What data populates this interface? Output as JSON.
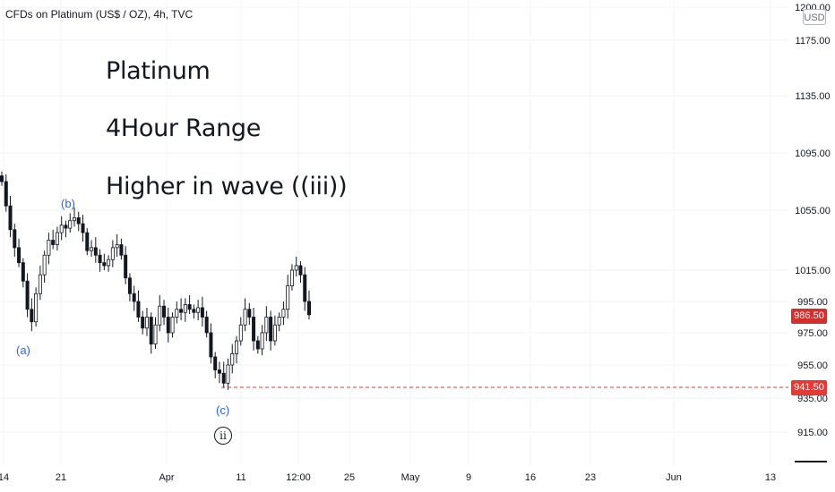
{
  "header": {
    "symbol_line": "CFDs on Platinum (US$ / OZ), 4h, TVC"
  },
  "annotations": {
    "line1": "Platinum",
    "line2": "4Hour Range",
    "line3": "Higher in wave ((iii))"
  },
  "wave_labels": {
    "a": "(a)",
    "b": "(b)",
    "c": "(c)",
    "ii": "ii"
  },
  "price_axis": {
    "currency_badge": "USD",
    "last_price_label": "986.50",
    "level_label": "941.50"
  },
  "colors": {
    "candle": "#131722",
    "level_line": "#e53935",
    "last_price_bg": "#d32f2f",
    "wave_label": "#2962ff",
    "grid": "#f0f3fa"
  },
  "chart_data": {
    "type": "candlestick",
    "title": "CFDs on Platinum (US$ / OZ), 4h, TVC",
    "xlabel": "",
    "ylabel": "",
    "ylim": [
      893,
      1215
    ],
    "grid": true,
    "y_ticks": [
      "915.00",
      "935.00",
      "955.00",
      "975.00",
      "995.00",
      "1015.00",
      "1055.00",
      "1095.00",
      "1135.00",
      "1175.00",
      "1200.00"
    ],
    "y_tick_values": [
      915,
      935,
      955,
      975,
      995,
      1015,
      1055,
      1095,
      1135,
      1175,
      1200
    ],
    "x_ticks": [
      "14",
      "21",
      "Apr",
      "11",
      "12:00",
      "25",
      "May",
      "9",
      "16",
      "23",
      "Jun",
      "13"
    ],
    "x_tick_positions": [
      0,
      10,
      26,
      42,
      50,
      60,
      70,
      80,
      90,
      100,
      112,
      122
    ],
    "horizontal_levels": [
      {
        "value": 941.5,
        "label": "941.50",
        "style": "dashed"
      }
    ],
    "last_price": 986.5,
    "ohlc_closes": [
      1075,
      1058,
      1042,
      1030,
      1020,
      1008,
      990,
      982,
      1000,
      1012,
      1025,
      1035,
      1032,
      1040,
      1045,
      1043,
      1048,
      1050,
      1046,
      1040,
      1028,
      1030,
      1025,
      1020,
      1018,
      1022,
      1030,
      1032,
      1025,
      1010,
      1000,
      995,
      985,
      978,
      985,
      968,
      980,
      992,
      985,
      975,
      985,
      990,
      988,
      993,
      990,
      988,
      991,
      985,
      975,
      960,
      952,
      950,
      944,
      955,
      962,
      970,
      980,
      990,
      985,
      970,
      965,
      975,
      985,
      970,
      980,
      985,
      990,
      1005,
      1015,
      1018,
      1012,
      995,
      986.5
    ],
    "wave_annotations": [
      {
        "label": "(a)",
        "index": 7
      },
      {
        "label": "(b)",
        "index": 17
      },
      {
        "label": "(c)",
        "index": 52
      },
      {
        "label": "ii",
        "index": 52
      }
    ],
    "text_annotations": [
      "Platinum",
      "4Hour Range",
      "Higher in wave ((iii))"
    ]
  }
}
